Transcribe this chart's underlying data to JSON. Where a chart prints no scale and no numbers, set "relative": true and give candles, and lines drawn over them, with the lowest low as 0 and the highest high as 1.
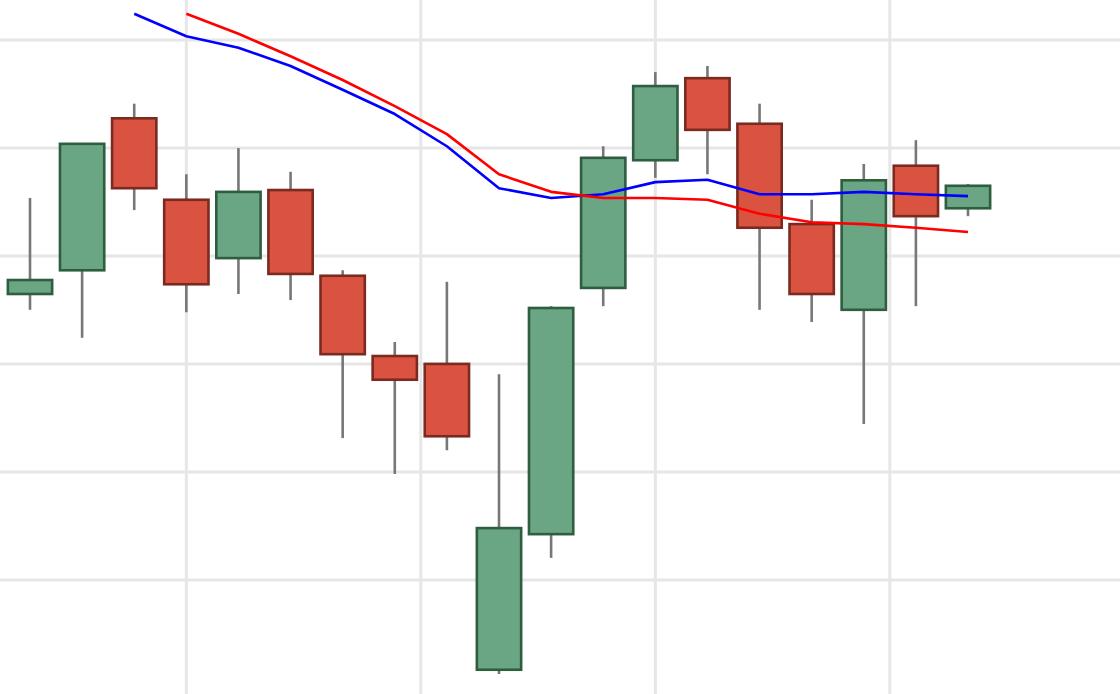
{
  "chart_data": {
    "type": "candlestick",
    "relative": true,
    "grid": true,
    "categories": [
      null,
      null,
      null,
      null,
      null,
      null,
      null,
      null,
      null,
      null,
      null,
      null,
      null,
      null,
      null,
      null,
      null,
      null,
      null
    ],
    "ohlc": [
      [
        0.625,
        0.783,
        0.599,
        0.648
      ],
      [
        0.664,
        0.872,
        0.553,
        0.872
      ],
      [
        0.914,
        0.938,
        0.763,
        0.799
      ],
      [
        0.78,
        0.822,
        0.595,
        0.641
      ],
      [
        0.684,
        0.865,
        0.625,
        0.793
      ],
      [
        0.796,
        0.826,
        0.615,
        0.658
      ],
      [
        0.655,
        0.664,
        0.388,
        0.526
      ],
      [
        0.523,
        0.546,
        0.329,
        0.484
      ],
      [
        0.51,
        0.645,
        0.368,
        0.391
      ],
      [
        0.007,
        0.493,
        0,
        0.24
      ],
      [
        0.23,
        0.605,
        0.191,
        0.602
      ],
      [
        0.635,
        0.868,
        0.605,
        0.849
      ],
      [
        0.845,
        0.99,
        0.816,
        0.967
      ],
      [
        0.98,
        1,
        0.822,
        0.895
      ],
      [
        0.905,
        0.938,
        0.599,
        0.734
      ],
      [
        0.74,
        0.78,
        0.579,
        0.625
      ],
      [
        0.599,
        0.839,
        0.411,
        0.812
      ],
      [
        0.836,
        0.878,
        0.605,
        0.753
      ],
      [
        0.766,
        0.806,
        0.753,
        0.803
      ]
    ],
    "colors": [
      "#6aa584",
      "#6aa584",
      "#d95340",
      "#d95340",
      "#6aa584",
      "#d95340",
      "#d95340",
      "#d95340",
      "#d95340",
      "#6aa584",
      "#6aa584",
      "#6aa584",
      "#6aa584",
      "#d95340",
      "#d95340",
      "#d95340",
      "#6aa584",
      "#d95340",
      "#6aa584"
    ],
    "series": [
      {
        "type": "line",
        "color": "#0000ff",
        "values": [
          null,
          null,
          1.086,
          1.049,
          1.03,
          1.0,
          0.961,
          0.921,
          0.868,
          0.799,
          0.783,
          0.789,
          0.809,
          0.813,
          0.789,
          0.789,
          0.793,
          0.789,
          0.786
        ]
      },
      {
        "type": "line",
        "color": "#ff0000",
        "values": [
          null,
          null,
          null,
          1.086,
          1.053,
          1.016,
          0.977,
          0.934,
          0.888,
          0.822,
          0.793,
          0.783,
          0.783,
          0.78,
          0.757,
          0.743,
          0.74,
          0.734,
          0.727
        ]
      }
    ]
  }
}
